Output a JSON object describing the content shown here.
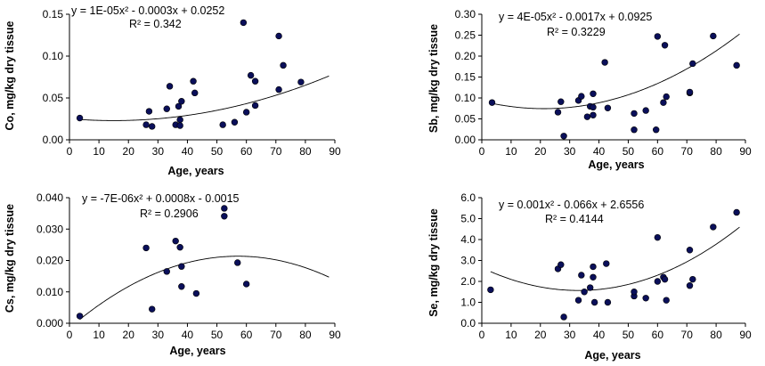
{
  "chart_data": [
    {
      "type": "scatter",
      "ylabel": "Co, mg/kg  dry tissue",
      "xlabel": "Age, years",
      "trend_equation": "y = 1E-05x² - 0.0003x + 0.0252",
      "r_squared": "R² = 0.342",
      "trend_coeffs": [
        1e-05,
        -0.0003,
        0.0252
      ],
      "xlim": [
        0,
        90
      ],
      "ylim": [
        0,
        0.15
      ],
      "xticks": [
        "0",
        "10",
        "20",
        "30",
        "40",
        "50",
        "60",
        "70",
        "80",
        "90"
      ],
      "yticks": [
        "0.00",
        "0.05",
        "0.10",
        "0.15"
      ],
      "x": [
        3.5,
        26,
        27,
        28,
        33,
        34,
        36,
        37,
        37.5,
        37.5,
        38,
        42,
        42.5,
        52,
        56,
        59,
        60,
        61.5,
        63,
        63,
        71,
        71,
        72.5,
        78.5
      ],
      "y": [
        0.026,
        0.018,
        0.034,
        0.016,
        0.037,
        0.064,
        0.018,
        0.04,
        0.024,
        0.017,
        0.046,
        0.07,
        0.056,
        0.018,
        0.021,
        0.14,
        0.033,
        0.077,
        0.041,
        0.07,
        0.06,
        0.124,
        0.089,
        0.069
      ]
    },
    {
      "type": "scatter",
      "ylabel": "Sb, mg/kg  dry tissue",
      "xlabel": "Age, years",
      "trend_equation": "y = 4E-05x² - 0.0017x + 0.0925",
      "r_squared": "R² = 0.3229",
      "trend_coeffs": [
        4e-05,
        -0.0017,
        0.0925
      ],
      "xlim": [
        0,
        90
      ],
      "ylim": [
        0,
        0.3
      ],
      "xticks": [
        "0",
        "10",
        "20",
        "30",
        "40",
        "50",
        "60",
        "70",
        "80",
        "90"
      ],
      "yticks": [
        "0.00",
        "0.05",
        "0.10",
        "0.15",
        "0.20",
        "0.25",
        "0.30"
      ],
      "x": [
        3.5,
        26,
        27,
        28,
        33,
        34,
        36,
        37,
        38,
        38,
        38,
        42,
        43,
        52,
        52,
        56,
        59.5,
        60,
        62,
        62.5,
        63,
        71,
        71,
        72,
        79,
        87
      ],
      "y": [
        0.089,
        0.066,
        0.091,
        0.009,
        0.094,
        0.104,
        0.055,
        0.08,
        0.059,
        0.078,
        0.11,
        0.185,
        0.076,
        0.024,
        0.063,
        0.07,
        0.024,
        0.247,
        0.089,
        0.226,
        0.103,
        0.112,
        0.114,
        0.182,
        0.248,
        0.178
      ]
    },
    {
      "type": "scatter",
      "ylabel": "Cs, mg/kg  dry tissue",
      "xlabel": "Age, years",
      "trend_equation": "y = -7E-06x² + 0.0008x - 0.0015",
      "r_squared": "R² = 0.2906",
      "trend_coeffs": [
        -7e-06,
        0.0008,
        -0.0015
      ],
      "xlim": [
        0,
        90
      ],
      "ylim": [
        0,
        0.04
      ],
      "xticks": [
        "0",
        "10",
        "20",
        "30",
        "40",
        "50",
        "60",
        "70",
        "80",
        "90"
      ],
      "yticks": [
        "0.000",
        "0.010",
        "0.020",
        "0.030",
        "0.040"
      ],
      "x": [
        3.5,
        26,
        28,
        33,
        36,
        37.5,
        38,
        38,
        43,
        52.5,
        52.5,
        57,
        60
      ],
      "y": [
        0.0023,
        0.024,
        0.0045,
        0.0165,
        0.0262,
        0.0242,
        0.0181,
        0.0117,
        0.0095,
        0.0366,
        0.0341,
        0.0193,
        0.0125
      ]
    },
    {
      "type": "scatter",
      "ylabel": "Se, mg/kg  dry tissue",
      "xlabel": "Age, years",
      "trend_equation": "y = 0.001x² - 0.066x + 2.6556",
      "r_squared": "R² = 0.4144",
      "trend_coeffs": [
        0.001,
        -0.066,
        2.6556
      ],
      "xlim": [
        0,
        90
      ],
      "ylim": [
        0,
        6.0
      ],
      "xticks": [
        "0",
        "10",
        "20",
        "30",
        "40",
        "50",
        "60",
        "70",
        "80",
        "90"
      ],
      "yticks": [
        "0.0",
        "1.0",
        "2.0",
        "3.0",
        "4.0",
        "5.0",
        "6.0"
      ],
      "x": [
        3,
        26,
        27,
        28,
        33,
        34,
        35,
        37,
        38,
        38,
        38.5,
        42.5,
        43,
        52,
        52,
        56,
        60,
        60,
        62,
        62.5,
        63,
        71,
        71,
        72,
        79,
        87
      ],
      "y": [
        1.6,
        2.6,
        2.8,
        0.3,
        1.1,
        2.3,
        1.5,
        1.7,
        2.2,
        2.7,
        1.0,
        2.85,
        1.0,
        1.3,
        1.5,
        1.2,
        4.1,
        2.0,
        2.2,
        2.1,
        1.1,
        3.5,
        1.8,
        2.1,
        4.6,
        5.3
      ]
    }
  ]
}
